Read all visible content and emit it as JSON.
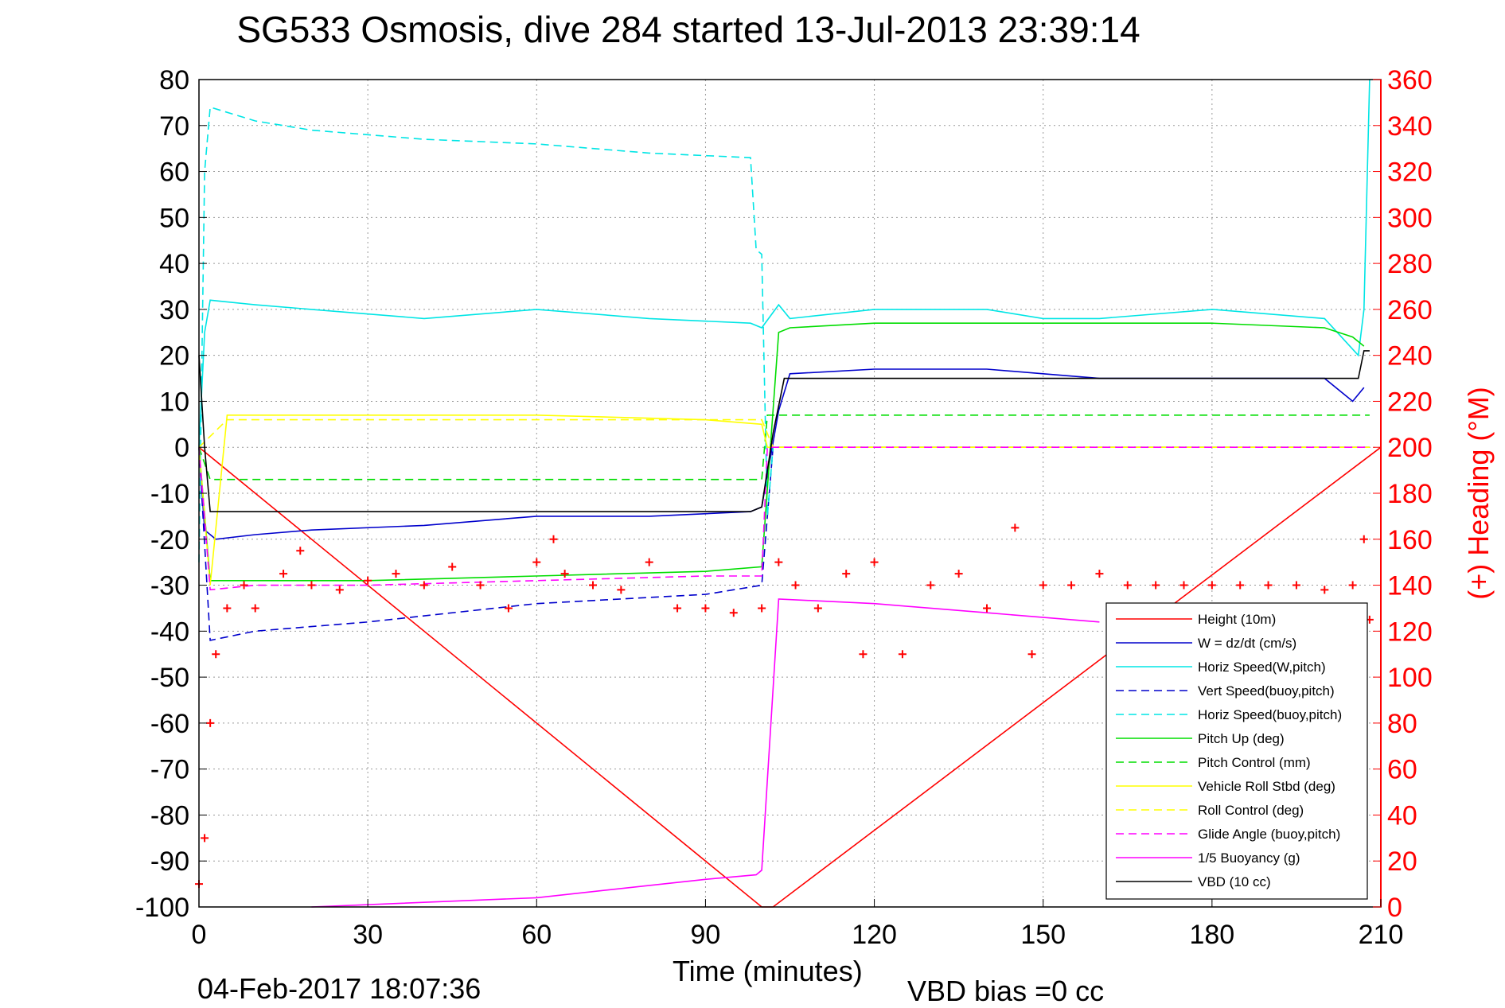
{
  "chart_data": {
    "type": "line",
    "title": "SG533 Osmosis, dive 284 started 13-Jul-2013 23:39:14",
    "xlabel": "Time (minutes)",
    "ylabel": "",
    "y2label": "(+) Heading (°M)",
    "xlim": [
      0,
      210
    ],
    "ylim": [
      -100,
      80
    ],
    "y2lim": [
      0,
      360
    ],
    "xticks": [
      0,
      30,
      60,
      90,
      120,
      150,
      180,
      210
    ],
    "yticks": [
      80,
      70,
      60,
      50,
      40,
      30,
      20,
      10,
      0,
      -10,
      -20,
      -30,
      -40,
      -50,
      -60,
      -70,
      -80,
      -90,
      -100
    ],
    "y2ticks": [
      360,
      340,
      320,
      300,
      280,
      260,
      240,
      220,
      200,
      180,
      160,
      140,
      120,
      100,
      80,
      60,
      40,
      20,
      0
    ],
    "grid": true,
    "legend_position": "bottom-right",
    "footer_timestamp": "04-Feb-2017 18:07:36",
    "footer_note": "VBD bias =0 cc",
    "colors": {
      "red": "#ff0000",
      "blue": "#0000cc",
      "cyan": "#00e5e5",
      "green": "#00dd00",
      "yellow": "#ffff00",
      "magenta": "#ff00ff",
      "black": "#000000",
      "grid": "#999999"
    },
    "series": [
      {
        "name": "Height (10m)",
        "color": "red",
        "style": "solid",
        "x": [
          0,
          100,
          102,
          210
        ],
        "y": [
          0,
          -100,
          -100,
          0
        ]
      },
      {
        "name": "W = dz/dt (cm/s)",
        "color": "blue",
        "style": "solid",
        "x": [
          0,
          1,
          3,
          10,
          20,
          40,
          60,
          80,
          98,
          100,
          103,
          105,
          120,
          140,
          150,
          160,
          180,
          200,
          205,
          207
        ],
        "y": [
          0,
          -18,
          -20,
          -19,
          -18,
          -17,
          -15,
          -15,
          -14,
          -13,
          8,
          16,
          17,
          17,
          16,
          15,
          15,
          15,
          10,
          13
        ]
      },
      {
        "name": "Horiz Speed(W,pitch)",
        "color": "cyan",
        "style": "solid",
        "x": [
          0,
          1,
          2,
          10,
          20,
          40,
          60,
          80,
          98,
          100,
          103,
          105,
          120,
          140,
          150,
          160,
          180,
          200,
          206,
          207,
          208
        ],
        "y": [
          0,
          25,
          32,
          31,
          30,
          28,
          30,
          28,
          27,
          26,
          31,
          28,
          30,
          30,
          28,
          28,
          30,
          28,
          20,
          30,
          80
        ]
      },
      {
        "name": "Vert Speed(buoy,pitch)",
        "color": "blue",
        "style": "dashed",
        "x": [
          0,
          2,
          10,
          30,
          60,
          90,
          100,
          102,
          120,
          150,
          180,
          208
        ],
        "y": [
          0,
          -42,
          -40,
          -38,
          -34,
          -32,
          -30,
          0,
          0,
          0,
          0,
          0
        ]
      },
      {
        "name": "Horiz Speed(buoy,pitch)",
        "color": "cyan",
        "style": "dashed",
        "x": [
          0,
          1,
          2,
          10,
          20,
          40,
          60,
          80,
          98,
          99,
          100,
          101,
          102
        ],
        "y": [
          -25,
          60,
          74,
          71,
          69,
          67,
          66,
          64,
          63,
          43,
          42,
          -15,
          0
        ]
      },
      {
        "name": "Pitch Up (deg)",
        "color": "green",
        "style": "solid",
        "x": [
          0,
          2,
          10,
          30,
          60,
          90,
          100,
          103,
          105,
          120,
          150,
          180,
          200,
          205,
          207
        ],
        "y": [
          0,
          -29,
          -29,
          -29,
          -28,
          -27,
          -26,
          25,
          26,
          27,
          27,
          27,
          26,
          24,
          22
        ]
      },
      {
        "name": "Pitch Control (mm)",
        "color": "green",
        "style": "dashed",
        "x": [
          0,
          2,
          100,
          101,
          208
        ],
        "y": [
          0,
          -7,
          -7,
          7,
          7
        ]
      },
      {
        "name": "Vehicle Roll Stbd (deg)",
        "color": "yellow",
        "style": "solid",
        "x": [
          0,
          2,
          5,
          30,
          60,
          90,
          100,
          101,
          103,
          120,
          150,
          180,
          200,
          208
        ],
        "y": [
          0,
          -30,
          7,
          7,
          7,
          6,
          5,
          0,
          0,
          0,
          0,
          0,
          0,
          0
        ]
      },
      {
        "name": "Roll Control (deg)",
        "color": "yellow",
        "style": "dashed",
        "x": [
          0,
          5,
          30,
          60,
          90,
          100,
          102,
          208
        ],
        "y": [
          0,
          6,
          6,
          6,
          6,
          6,
          0,
          0
        ]
      },
      {
        "name": "Glide Angle (buoy,pitch)",
        "color": "magenta",
        "style": "dashed",
        "x": [
          0,
          2,
          10,
          30,
          60,
          90,
          100,
          101,
          208
        ],
        "y": [
          0,
          -31,
          -30,
          -30,
          -29,
          -28,
          -28,
          0,
          0
        ]
      },
      {
        "name": "1/5 Buoyancy (g)",
        "color": "magenta",
        "style": "solid",
        "x": [
          20,
          60,
          90,
          99,
          100,
          103,
          120,
          140,
          160
        ],
        "y": [
          -100,
          -98,
          -94,
          -93,
          -92,
          -33,
          -34,
          -36,
          -38
        ]
      },
      {
        "name": "VBD (10 cc)",
        "color": "black",
        "style": "solid",
        "x": [
          0,
          1,
          2,
          3,
          30,
          60,
          98,
          100,
          102,
          104,
          150,
          180,
          206,
          207,
          208
        ],
        "y": [
          20,
          0,
          -14,
          -14,
          -14,
          -14,
          -14,
          -13,
          3,
          15,
          15,
          15,
          15,
          21,
          21
        ]
      },
      {
        "name": "Heading (°M)",
        "color": "red",
        "style": "plus",
        "axis": "right",
        "x": [
          0,
          1,
          2,
          3,
          5,
          8,
          10,
          15,
          18,
          20,
          25,
          30,
          35,
          40,
          45,
          50,
          55,
          60,
          63,
          65,
          70,
          75,
          80,
          85,
          90,
          95,
          100,
          103,
          106,
          110,
          115,
          118,
          120,
          125,
          130,
          135,
          140,
          145,
          148,
          150,
          155,
          160,
          165,
          170,
          175,
          180,
          185,
          190,
          195,
          200,
          205,
          207,
          208
        ],
        "y": [
          10,
          30,
          80,
          110,
          130,
          140,
          130,
          145,
          155,
          140,
          138,
          142,
          145,
          140,
          148,
          140,
          130,
          150,
          160,
          145,
          140,
          138,
          150,
          130,
          130,
          128,
          130,
          150,
          140,
          130,
          145,
          110,
          150,
          110,
          140,
          145,
          130,
          165,
          110,
          140,
          140,
          145,
          140,
          140,
          140,
          140,
          140,
          140,
          140,
          138,
          140,
          160,
          125
        ]
      }
    ]
  }
}
